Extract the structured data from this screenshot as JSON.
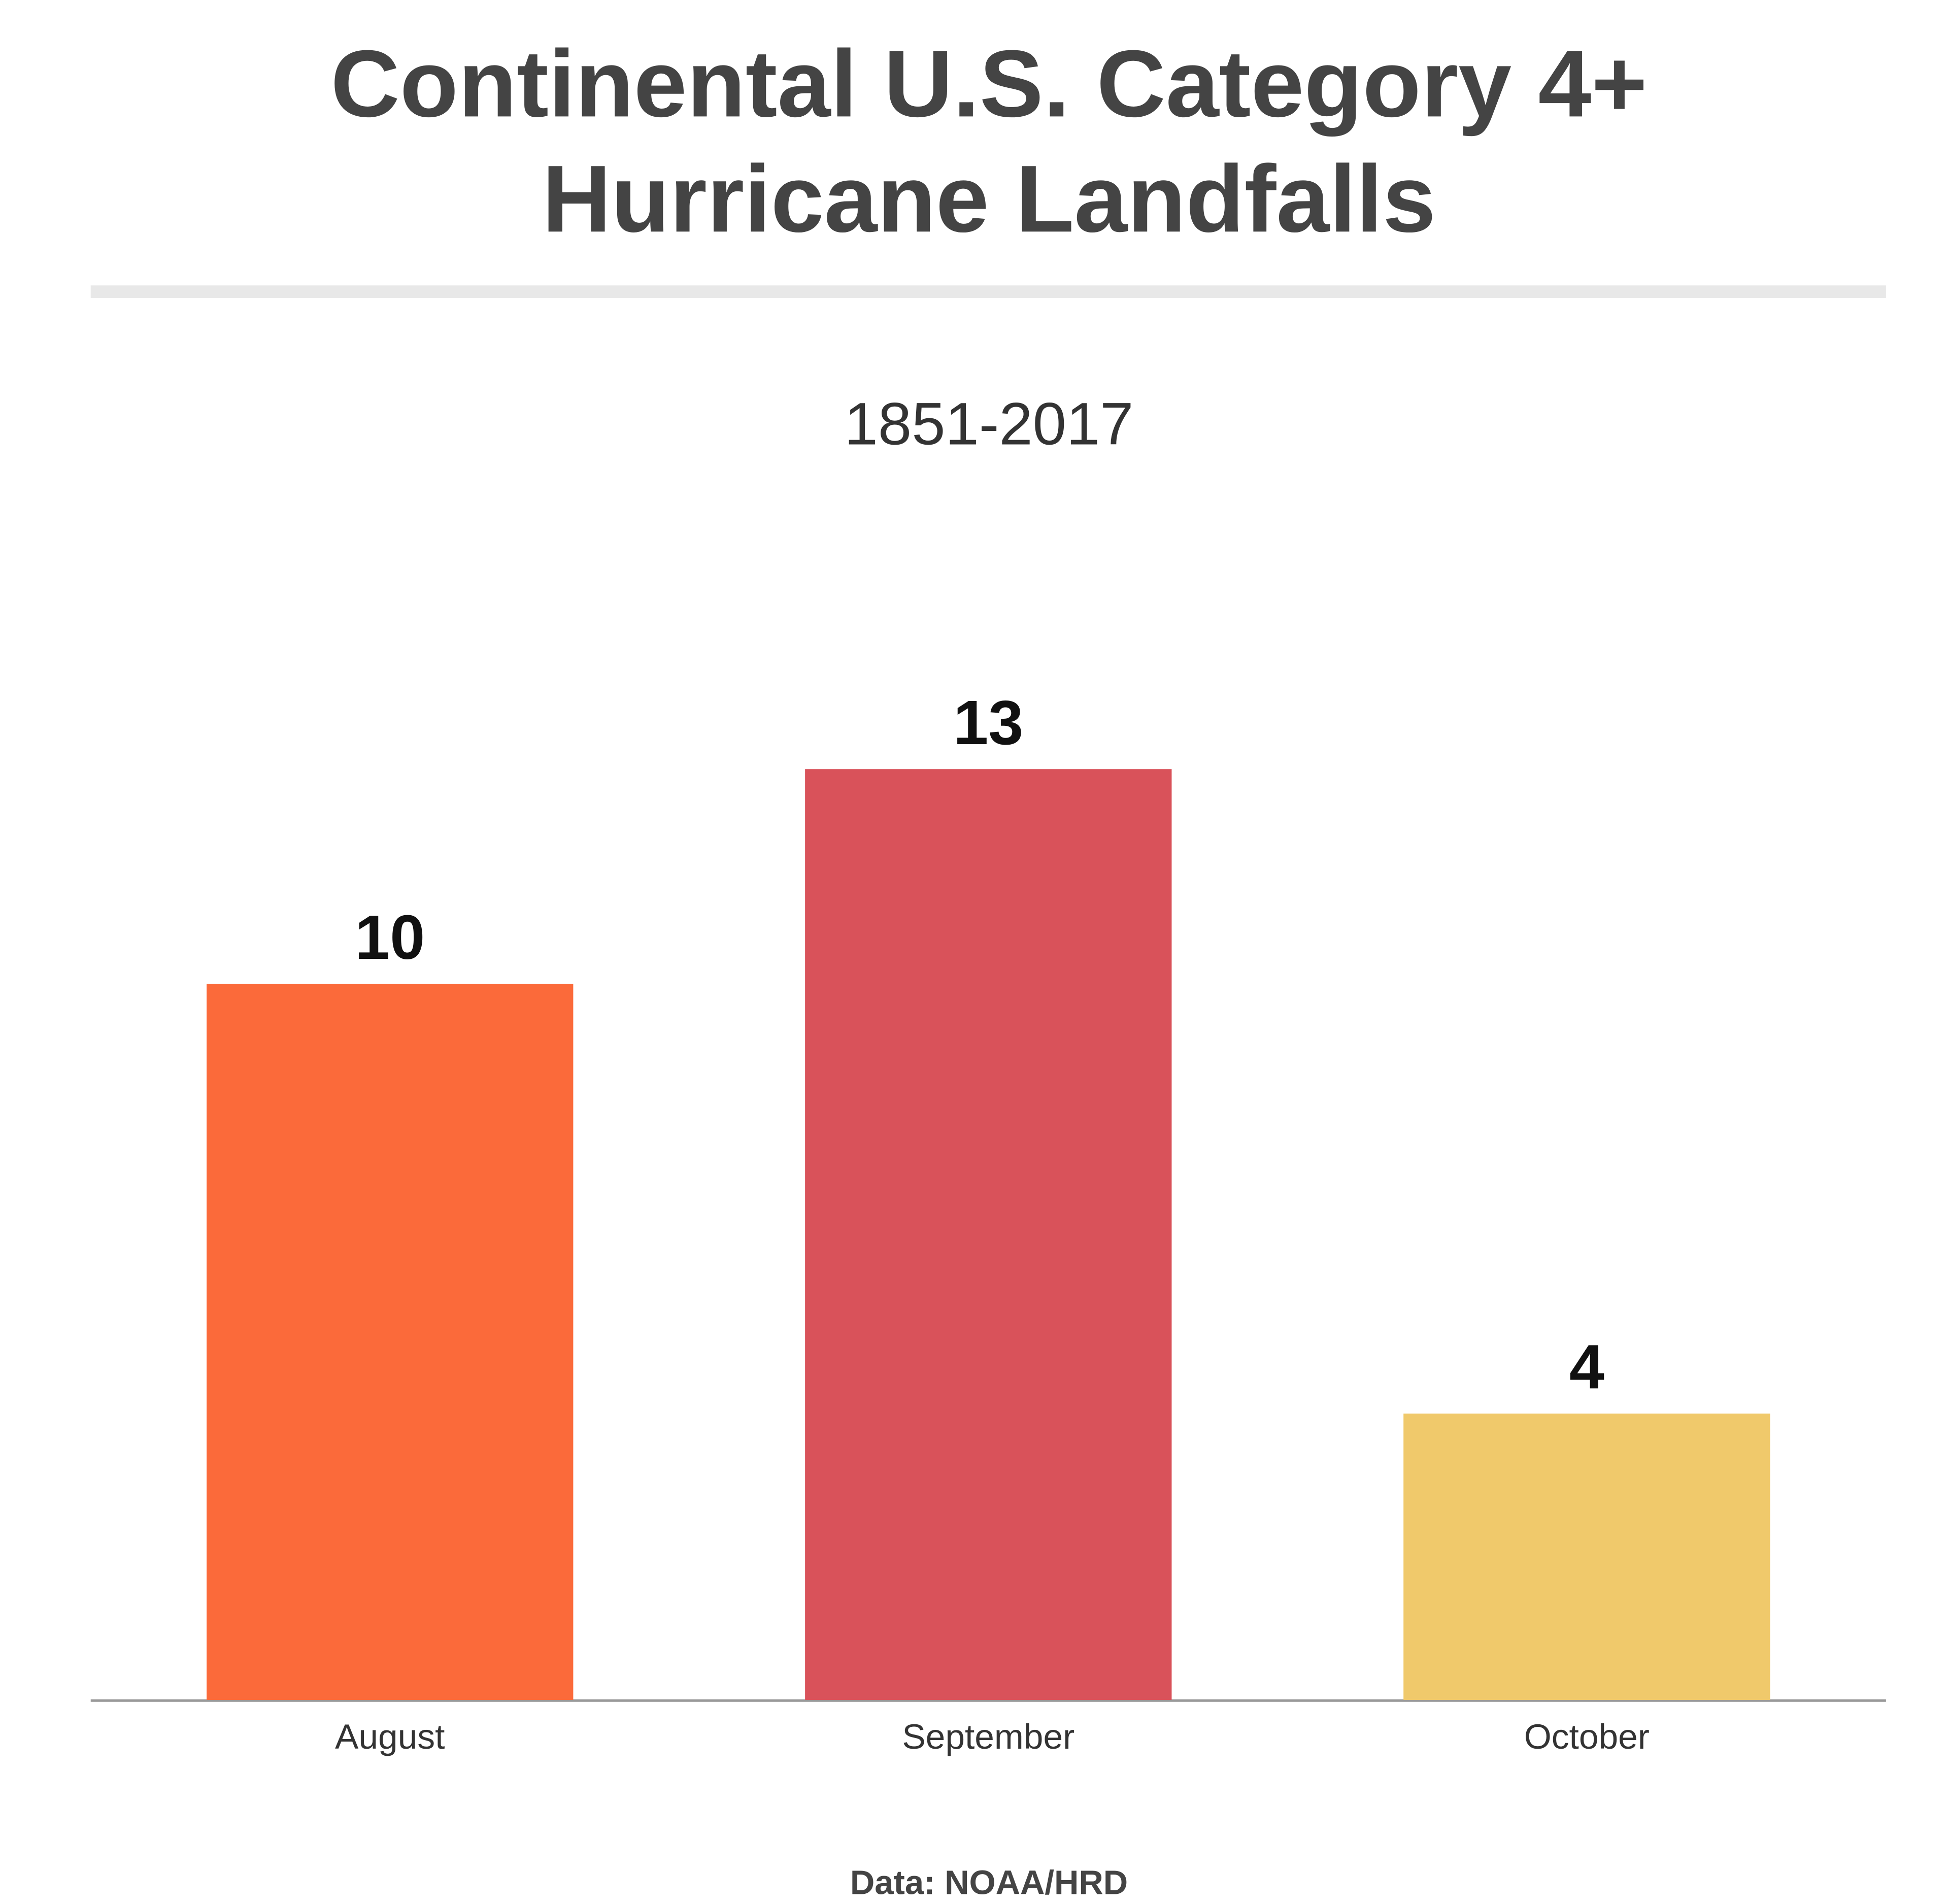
{
  "chart_data": {
    "type": "bar",
    "title": [
      "Continental U.S. Category 4+",
      "Hurricane Landfalls"
    ],
    "subtitle": "1851-2017",
    "categories": [
      "August",
      "September",
      "October"
    ],
    "values": [
      10,
      13,
      4
    ],
    "colors": [
      "#fb6a3a",
      "#d9525a",
      "#f0c96b"
    ],
    "source": "Data: NOAA/HRD"
  }
}
